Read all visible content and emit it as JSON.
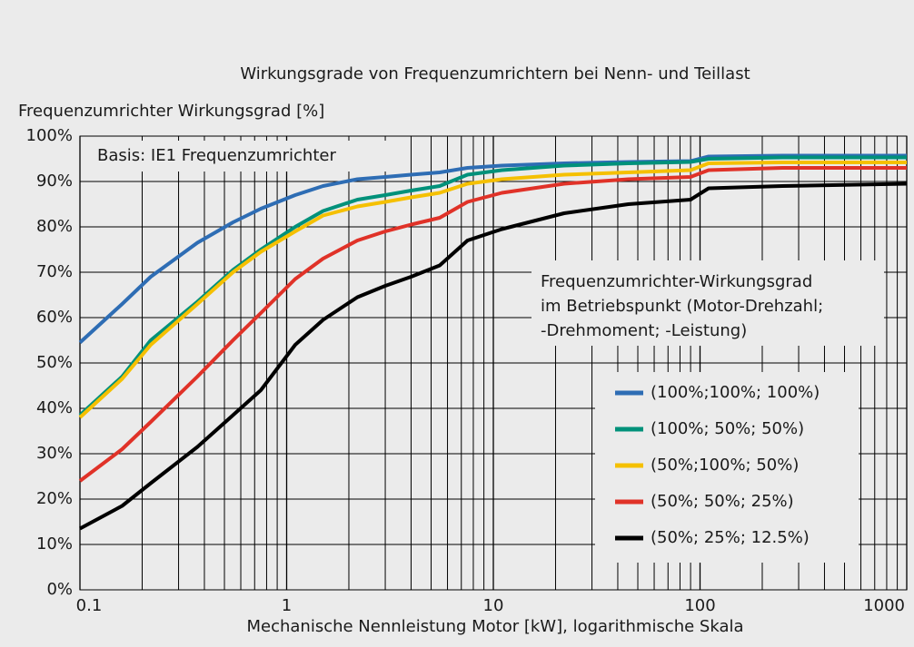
{
  "chart_data": {
    "type": "line",
    "title": "Wirkungsgrade von Frequenzumrichtern bei Nenn- und Teillast",
    "y_label": "Frequenzumrichter Wirkungsgrad [%]",
    "x_label": "Mechanische Nennleistung Motor [kW], logarithmische Skala",
    "annotation": "Basis: IE1 Frequenzumrichter",
    "legend_title": [
      "Frequenzumrichter-Wirkungsgrad",
      "im Betriebspunkt (Motor-Drehzahl;",
      "-Drehmoment; -Leistung)"
    ],
    "x_log": true,
    "grid": true,
    "legend_position": "lower right",
    "xlim": [
      0.1,
      1000
    ],
    "xticks": [
      0.1,
      1,
      10,
      100,
      1000
    ],
    "ylim": [
      0,
      100
    ],
    "yticks": [
      {
        "value": 0,
        "label": "0%"
      },
      {
        "value": 10,
        "label": "10%"
      },
      {
        "value": 20,
        "label": "20%"
      },
      {
        "value": 30,
        "label": "30%"
      },
      {
        "value": 40,
        "label": "40%"
      },
      {
        "value": 50,
        "label": "50%"
      },
      {
        "value": 60,
        "label": "60%"
      },
      {
        "value": 70,
        "label": "70%"
      },
      {
        "value": 80,
        "label": "80%"
      },
      {
        "value": 90,
        "label": "90%"
      },
      {
        "value": 100,
        "label": "100%"
      }
    ],
    "x": [
      0.1,
      0.16,
      0.22,
      0.37,
      0.55,
      0.75,
      1.1,
      1.5,
      2.2,
      3,
      4,
      5.5,
      7.5,
      11,
      22,
      45,
      90,
      110,
      250,
      1000
    ],
    "series": [
      {
        "name": "(100%;100%; 100%)",
        "color": "#2e6db4",
        "values": [
          54.5,
          63,
          69,
          76.5,
          81,
          84,
          87,
          89,
          90.5,
          91,
          91.5,
          92,
          93,
          93.5,
          94,
          94.3,
          94.5,
          95.5,
          95.7,
          95.7
        ]
      },
      {
        "name": "(100%; 50%; 50%)",
        "color": "#00917a",
        "values": [
          38.5,
          47,
          55,
          63.5,
          70.5,
          75,
          80,
          83.5,
          86,
          87,
          88,
          89,
          91.5,
          92.5,
          93.5,
          94,
          94.3,
          95,
          95.3,
          95.3
        ]
      },
      {
        "name": "(50%;100%; 50%)",
        "color": "#f5c000",
        "values": [
          38,
          46.5,
          54,
          63,
          70,
          74.5,
          79,
          82.5,
          84.5,
          85.5,
          86.5,
          87.5,
          89.5,
          90.5,
          91.5,
          92,
          92.5,
          94,
          94.2,
          94.2
        ]
      },
      {
        "name": "(50%; 50%; 25%)",
        "color": "#e03228",
        "values": [
          24,
          31,
          37,
          47,
          55,
          61,
          68.5,
          73,
          77,
          79,
          80.5,
          82,
          85.5,
          87.5,
          89.5,
          90.5,
          91,
          92.5,
          93,
          93
        ]
      },
      {
        "name": "(50%; 25%; 12.5%)",
        "color": "#000000",
        "values": [
          13.5,
          18.5,
          23.5,
          31.5,
          38.5,
          44,
          54,
          59.5,
          64.5,
          67,
          69,
          71.5,
          77,
          79.5,
          83,
          85,
          86,
          88.5,
          89,
          89.5
        ]
      }
    ]
  }
}
